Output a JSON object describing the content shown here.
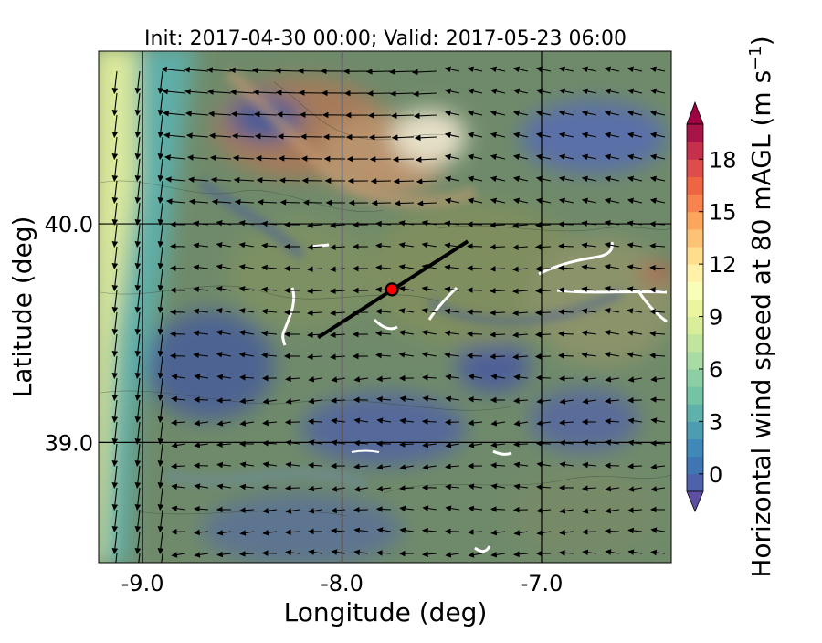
{
  "title": "Init: 2017-04-30 00:00; Valid: 2017-05-23 06:00",
  "chart_data": {
    "type": "heatmap",
    "title": "Init: 2017-04-30 00:00; Valid: 2017-05-23 06:00",
    "xlabel": "Longitude (deg)",
    "ylabel": "Latitude (deg)",
    "xlim": [
      -9.22,
      -6.35
    ],
    "ylim": [
      38.45,
      40.79
    ],
    "x_ticks": [
      -9.0,
      -8.0,
      -7.0
    ],
    "x_tick_labels": [
      "-9.0",
      "-8.0",
      "-7.0"
    ],
    "y_ticks": [
      39.0,
      40.0
    ],
    "y_tick_labels": [
      "39.0",
      "40.0"
    ],
    "grid": true,
    "colorbar": {
      "label": "Horizontal wind speed at 80 mAGL (m s",
      "label_exponent": "−1",
      "label_close": ")",
      "min": -1,
      "max": 20,
      "ticks": [
        0,
        3,
        6,
        9,
        12,
        15,
        18
      ],
      "tick_labels": [
        "0",
        "3",
        "6",
        "9",
        "12",
        "15",
        "18"
      ],
      "colors": [
        "#5e4fa2",
        "#4f61aa",
        "#4075b4",
        "#3f88b7",
        "#4c9db2",
        "#5fb1ab",
        "#74c3a4",
        "#8dcfa4",
        "#a9dba4",
        "#c2e59e",
        "#d8ee9b",
        "#eaf59d",
        "#fafdb7",
        "#fff1a8",
        "#fedd8d",
        "#fdc374",
        "#fca55d",
        "#f7844e",
        "#ee6544",
        "#dc4d4b",
        "#c5314d",
        "#a71548",
        "#9e0142"
      ]
    },
    "marker": {
      "lon": -7.75,
      "lat": 39.7,
      "color": "#ff0000"
    },
    "transect": {
      "start": [
        -8.12,
        39.48
      ],
      "end": [
        -7.37,
        39.92
      ]
    }
  }
}
